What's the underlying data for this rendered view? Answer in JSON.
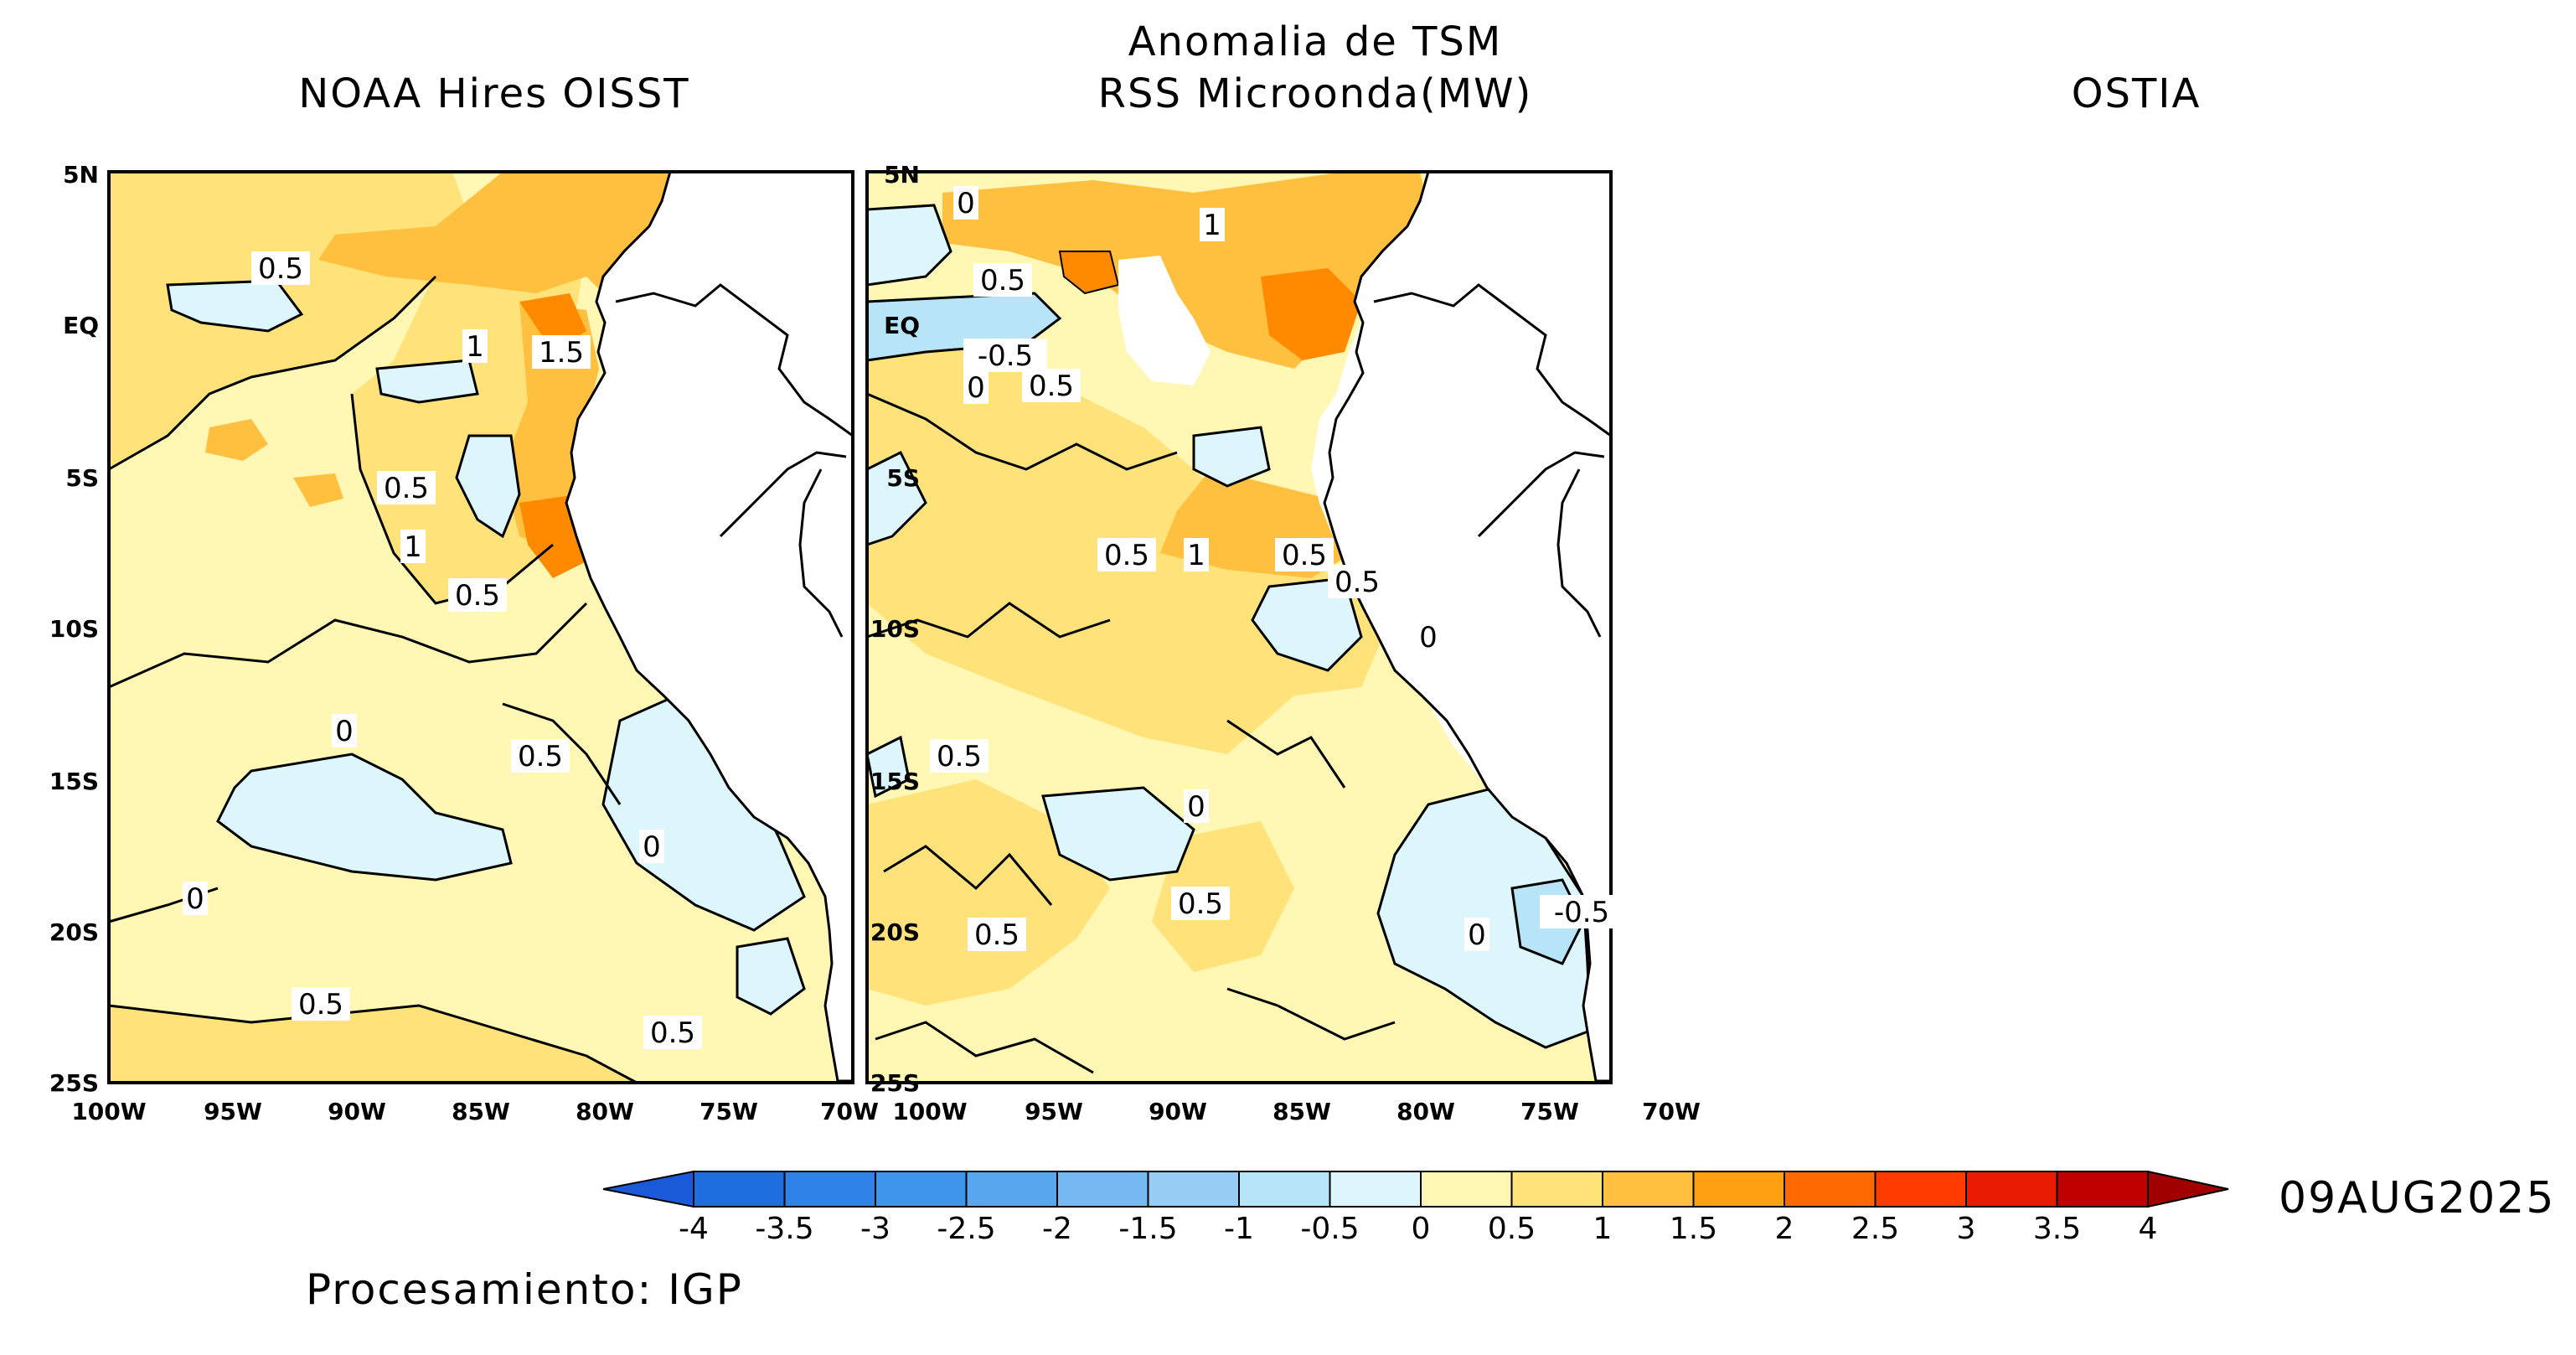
{
  "main_title": "Anomalia de TSM",
  "panels": [
    {
      "title": "NOAA Hires OISST"
    },
    {
      "title": "RSS Microonda(MW)"
    },
    {
      "title": "OSTIA"
    }
  ],
  "y_ticks": [
    "5N",
    "EQ",
    "5S",
    "10S",
    "15S",
    "20S",
    "25S"
  ],
  "x_ticks": [
    "100W",
    "95W",
    "90W",
    "85W",
    "80W",
    "75W",
    "70W"
  ],
  "colorbar": {
    "labels": [
      "-4",
      "-3.5",
      "-3",
      "-2.5",
      "-2",
      "-1.5",
      "-1",
      "-0.5",
      "0",
      "0.5",
      "1",
      "1.5",
      "2",
      "2.5",
      "3",
      "3.5",
      "4"
    ],
    "colors": [
      "#1e6ee0",
      "#2e82e8",
      "#3f95ea",
      "#57a6ee",
      "#76b9f2",
      "#97ccf5",
      "#b7e4f7",
      "#dcf6fb",
      "#fff7b3",
      "#ffe27a",
      "#ffc040",
      "#ffa010",
      "#ff6a00",
      "#ff3c00",
      "#e81a00",
      "#c00000"
    ],
    "under_color": "#1a5ad8",
    "over_color": "#a00000"
  },
  "contour_labels": {
    "panel1": [
      "0.5",
      "1",
      "1.5",
      "0.5",
      "1",
      "0.5",
      "0",
      "0.5",
      "0",
      "0",
      "0.5",
      "0.5"
    ],
    "panel2": [
      "0",
      "0.5",
      "1",
      "-0.5",
      "0",
      "0.5",
      "0.5",
      "1",
      "0.5",
      "0.5",
      "0",
      "0.5",
      "0",
      "0.5",
      "0.5",
      "-0.5",
      "0"
    ]
  },
  "date": "09AUG2025",
  "credit": "Procesamiento: IGP"
}
